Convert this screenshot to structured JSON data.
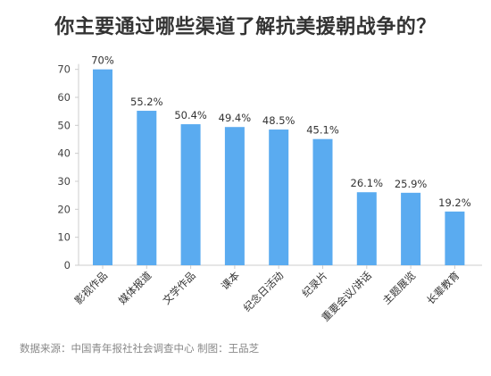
{
  "chart_data": {
    "type": "bar",
    "title": "你主要通过哪些渠道了解抗美援朝战争的？",
    "categories": [
      "影视作品",
      "媒体报道",
      "文学作品",
      "课本",
      "纪念日活动",
      "纪录片",
      "重要会议/讲话",
      "主题展览",
      "长辈教育"
    ],
    "values": [
      70,
      55.2,
      50.4,
      49.4,
      48.5,
      45.1,
      26.1,
      25.9,
      19.2
    ],
    "value_labels": [
      "70%",
      "55.2%",
      "50.4%",
      "49.4%",
      "48.5%",
      "45.1%",
      "26.1%",
      "25.9%",
      "19.2%"
    ],
    "yticks": [
      "0",
      "10",
      "20",
      "30",
      "40",
      "50",
      "60",
      "70"
    ],
    "ylim": [
      0,
      75
    ],
    "xlabel": "",
    "ylabel": "",
    "bar_color": "#5aabf0",
    "grid": false,
    "legend": "none"
  },
  "footer": {
    "source": "数据来源：中国青年报社社会调查中心 制图：王品芝"
  }
}
